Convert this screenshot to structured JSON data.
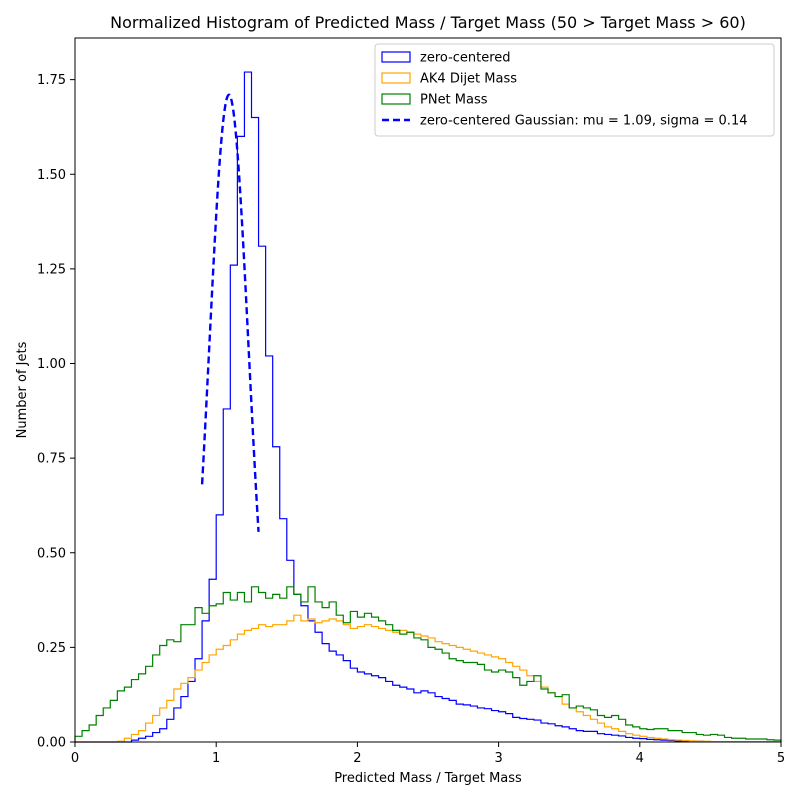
{
  "chart_data": {
    "type": "histogram",
    "title": "Normalized Histogram of Predicted Mass / Target Mass (50 > Target Mass > 60)",
    "xlabel": "Predicted Mass / Target Mass",
    "ylabel": "Number of Jets",
    "xlim": [
      0,
      5
    ],
    "ylim": [
      0,
      1.86
    ],
    "x_ticks": [
      0,
      1,
      2,
      3,
      4,
      5
    ],
    "x_tick_labels": [
      "0",
      "1",
      "2",
      "3",
      "4",
      "5"
    ],
    "y_ticks": [
      0,
      0.25,
      0.5,
      0.75,
      1.0,
      1.25,
      1.5,
      1.75
    ],
    "y_tick_labels": [
      "0.00",
      "0.25",
      "0.50",
      "0.75",
      "1.00",
      "1.25",
      "1.50",
      "1.75"
    ],
    "grid": false,
    "legend_position": "top-right",
    "bin_width": 0.05,
    "series": [
      {
        "name": "zero-centered",
        "color": "#0000ff",
        "style": "step",
        "values": [
          0,
          0,
          0,
          0,
          0,
          0,
          0,
          0,
          0.005,
          0.01,
          0.015,
          0.025,
          0.035,
          0.06,
          0.09,
          0.12,
          0.16,
          0.22,
          0.32,
          0.43,
          0.6,
          0.88,
          1.26,
          1.6,
          1.77,
          1.65,
          1.31,
          1.02,
          0.78,
          0.59,
          0.48,
          0.39,
          0.36,
          0.32,
          0.29,
          0.26,
          0.24,
          0.23,
          0.215,
          0.195,
          0.185,
          0.18,
          0.175,
          0.17,
          0.16,
          0.15,
          0.145,
          0.14,
          0.13,
          0.135,
          0.13,
          0.12,
          0.115,
          0.11,
          0.1,
          0.098,
          0.095,
          0.09,
          0.088,
          0.083,
          0.08,
          0.075,
          0.065,
          0.062,
          0.06,
          0.058,
          0.05,
          0.048,
          0.043,
          0.04,
          0.035,
          0.03,
          0.028,
          0.028,
          0.022,
          0.02,
          0.018,
          0.016,
          0.012,
          0.01,
          0.009,
          0.007,
          0.006,
          0.005,
          0.004,
          0.003,
          0.002,
          0.002,
          0.002,
          0.001,
          0.001,
          0.001,
          0.001,
          0.001,
          0.001,
          0.001,
          0.001,
          0.001,
          0.001,
          0.001
        ]
      },
      {
        "name": "AK4 Dijet Mass",
        "color": "#ffa500",
        "style": "step",
        "values": [
          0,
          0,
          0,
          0,
          0,
          0,
          0.002,
          0.01,
          0.02,
          0.03,
          0.05,
          0.07,
          0.09,
          0.11,
          0.14,
          0.155,
          0.17,
          0.19,
          0.21,
          0.23,
          0.245,
          0.255,
          0.27,
          0.285,
          0.295,
          0.3,
          0.31,
          0.305,
          0.31,
          0.31,
          0.32,
          0.335,
          0.32,
          0.325,
          0.315,
          0.32,
          0.325,
          0.32,
          0.31,
          0.3,
          0.305,
          0.31,
          0.305,
          0.3,
          0.295,
          0.29,
          0.295,
          0.29,
          0.285,
          0.28,
          0.275,
          0.265,
          0.26,
          0.255,
          0.25,
          0.245,
          0.24,
          0.235,
          0.23,
          0.225,
          0.22,
          0.21,
          0.2,
          0.19,
          0.175,
          0.16,
          0.145,
          0.13,
          0.12,
          0.1,
          0.09,
          0.08,
          0.07,
          0.06,
          0.05,
          0.04,
          0.035,
          0.028,
          0.022,
          0.018,
          0.015,
          0.012,
          0.01,
          0.008,
          0.006,
          0.005,
          0.004,
          0.003,
          0.002,
          0.002,
          0.001,
          0.001,
          0.001,
          0.001,
          0.001,
          0.001,
          0.001,
          0.001,
          0.001,
          0.001
        ]
      },
      {
        "name": "PNet Mass",
        "color": "#008000",
        "style": "step",
        "values": [
          0.015,
          0.03,
          0.045,
          0.07,
          0.09,
          0.11,
          0.135,
          0.145,
          0.165,
          0.18,
          0.2,
          0.23,
          0.255,
          0.27,
          0.265,
          0.31,
          0.31,
          0.355,
          0.34,
          0.36,
          0.365,
          0.395,
          0.375,
          0.395,
          0.37,
          0.41,
          0.395,
          0.38,
          0.39,
          0.38,
          0.41,
          0.39,
          0.37,
          0.41,
          0.37,
          0.355,
          0.37,
          0.335,
          0.315,
          0.345,
          0.33,
          0.34,
          0.33,
          0.32,
          0.31,
          0.295,
          0.285,
          0.29,
          0.275,
          0.27,
          0.25,
          0.245,
          0.235,
          0.22,
          0.215,
          0.21,
          0.21,
          0.205,
          0.19,
          0.185,
          0.19,
          0.185,
          0.17,
          0.15,
          0.16,
          0.175,
          0.14,
          0.13,
          0.12,
          0.125,
          0.09,
          0.095,
          0.09,
          0.085,
          0.07,
          0.065,
          0.07,
          0.06,
          0.045,
          0.04,
          0.035,
          0.033,
          0.035,
          0.035,
          0.03,
          0.03,
          0.025,
          0.025,
          0.02,
          0.018,
          0.02,
          0.018,
          0.012,
          0.01,
          0.01,
          0.008,
          0.008,
          0.008,
          0.006,
          0.005
        ]
      },
      {
        "name": "zero-centered Gaussian: mu = 1.09, sigma = 0.14",
        "color": "#0000ff",
        "style": "dashed",
        "mu": 1.09,
        "sigma": 0.14,
        "amplitude": 1.71,
        "x_range": [
          0.9,
          1.3
        ]
      }
    ]
  }
}
